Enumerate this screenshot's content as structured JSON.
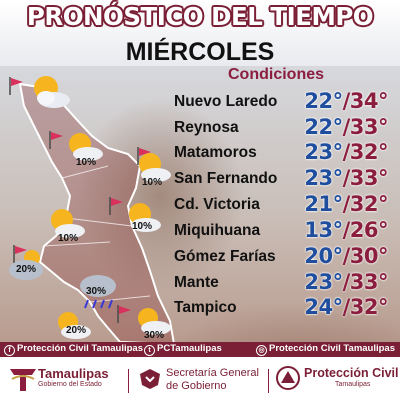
{
  "header": {
    "title": "PRONÓSTICO DEL TIEMPO",
    "day": "MIÉRCOLES",
    "conditions_label": "Condiciones"
  },
  "cities": [
    {
      "name": "Nuevo Laredo",
      "min": "22°",
      "max": "34°"
    },
    {
      "name": "Reynosa",
      "min": "22°",
      "max": "33°"
    },
    {
      "name": "Matamoros",
      "min": "23°",
      "max": "32°"
    },
    {
      "name": "San Fernando",
      "min": "23°",
      "max": "33°"
    },
    {
      "name": "Cd. Victoria",
      "min": "21°",
      "max": "32°"
    },
    {
      "name": "Miquihuana",
      "min": "13°",
      "max": "26°"
    },
    {
      "name": "Gómez Farías",
      "min": "20°",
      "max": "30°"
    },
    {
      "name": "Mante",
      "min": "23°",
      "max": "33°"
    },
    {
      "name": "Tampico",
      "min": "24°",
      "max": "32°"
    }
  ],
  "separator": "/",
  "map_icons": [
    {
      "type": "partly-cloudy",
      "percent": ""
    },
    {
      "type": "partly-cloudy",
      "percent": "10%"
    },
    {
      "type": "partly-cloudy",
      "percent": "10%"
    },
    {
      "type": "partly-cloudy",
      "percent": "10%"
    },
    {
      "type": "partly-cloudy",
      "percent": "10%"
    },
    {
      "type": "cloudy",
      "percent": "20%"
    },
    {
      "type": "rain",
      "percent": "30%"
    },
    {
      "type": "partly-cloudy",
      "percent": "20%"
    },
    {
      "type": "partly-cloudy-rain",
      "percent": "30%"
    }
  ],
  "social": {
    "facebook": "Protección Civil Tamaulipas",
    "twitter": "PCTamaulipas",
    "instagram": "Protección Civil Tamaulipas"
  },
  "footer": {
    "tamaulipas": "Tamaulipas",
    "tamaulipas_sub": "Gobierno del Estado",
    "sgg_line1": "Secretaría General",
    "sgg_line2": "de Gobierno",
    "pc_line1": "Protección Civil",
    "pc_line2": "Tamaulipas"
  },
  "colors": {
    "brand": "#7a1f35",
    "min_temp": "#1f4e9e",
    "max_temp": "#8b1e3f"
  }
}
